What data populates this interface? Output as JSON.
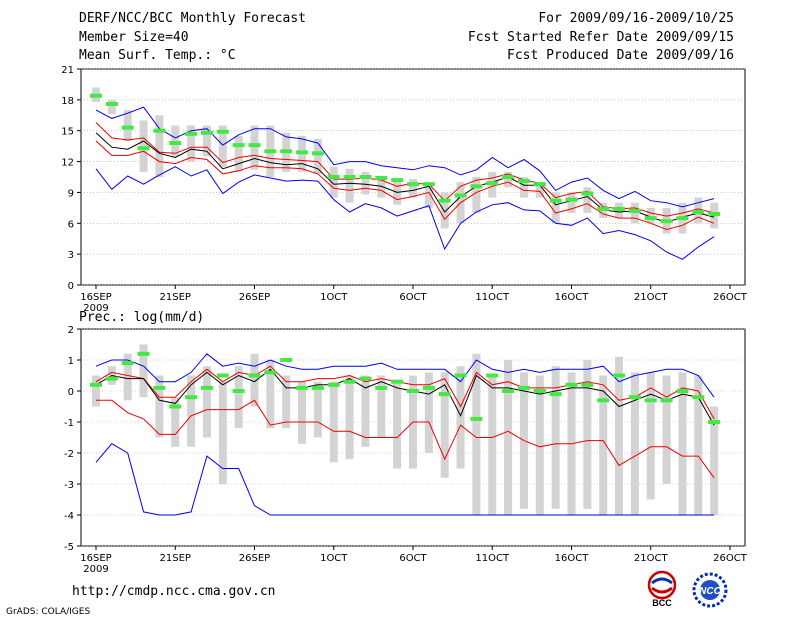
{
  "header": {
    "title": "DERF/NCC/BCC Monthly Forecast",
    "member_size": "Member Size=40",
    "variable": "Mean Surf. Temp.: °C",
    "period": "For 2009/09/16-2009/10/25",
    "started": "Fcst Started Refer Date 2009/09/15",
    "produced": "Fcst Produced Date 2009/09/16"
  },
  "footer": {
    "url": "http://cmdp.ncc.cma.gov.cn",
    "grads": "GrADS: COLA/IGES",
    "logo1_text": "BCC",
    "logo2_text": "NCC"
  },
  "colors": {
    "blue": "#0000ee",
    "red": "#ee0000",
    "black": "#000000",
    "box": "#d3d3d3",
    "green": "#44e844",
    "grid": "#aaaaaa"
  },
  "chart_data": [
    {
      "type": "line",
      "title": "Mean Surf. Temp.: °C",
      "ylim": [
        0,
        21
      ],
      "yticks": [
        "0",
        "3",
        "6",
        "9",
        "12",
        "15",
        "18",
        "21"
      ],
      "xlim": [
        1,
        41
      ],
      "xtick_positions": [
        1,
        6,
        11,
        16,
        21,
        26,
        31,
        36,
        41
      ],
      "xtick_labels": [
        "16SEP",
        "21SEP",
        "26SEP",
        "1OCT",
        "6OCT",
        "11OCT",
        "16OCT",
        "21OCT",
        "26OCT"
      ],
      "xtick_sublabel": "2009",
      "x": [
        1,
        2,
        3,
        4,
        5,
        6,
        7,
        8,
        9,
        10,
        11,
        12,
        13,
        14,
        15,
        16,
        17,
        18,
        19,
        20,
        21,
        22,
        23,
        24,
        25,
        26,
        27,
        28,
        29,
        30,
        31,
        32,
        33,
        34,
        35,
        36,
        37,
        38,
        39,
        40
      ],
      "series": [
        {
          "name": "max",
          "color": "blue",
          "values": [
            17.0,
            16.2,
            16.7,
            17.3,
            15.2,
            14.3,
            15.0,
            15.2,
            13.6,
            14.6,
            15.2,
            15.2,
            14.4,
            14.2,
            13.8,
            11.7,
            12.0,
            12.0,
            11.6,
            11.4,
            11.2,
            11.6,
            11.4,
            10.7,
            11.2,
            12.4,
            11.4,
            12.2,
            11.1,
            9.2,
            10.0,
            10.4,
            9.2,
            8.4,
            9.1,
            8.2,
            8.0,
            7.6,
            8.0,
            8.4
          ]
        },
        {
          "name": "upper",
          "color": "red",
          "values": [
            15.8,
            14.3,
            14.1,
            14.3,
            12.9,
            12.8,
            13.4,
            13.4,
            11.9,
            12.4,
            12.6,
            12.3,
            12.2,
            12.1,
            12.0,
            10.3,
            10.3,
            10.4,
            10.2,
            9.6,
            9.9,
            9.8,
            8.2,
            9.6,
            10.2,
            10.4,
            10.8,
            10.2,
            9.9,
            8.5,
            8.9,
            9.1,
            7.6,
            7.4,
            7.5,
            7.0,
            6.7,
            7.0,
            7.4,
            7.0
          ]
        },
        {
          "name": "mean",
          "color": "black",
          "values": [
            14.8,
            13.4,
            13.2,
            14.0,
            12.8,
            12.4,
            13.2,
            13.0,
            11.3,
            11.8,
            12.3,
            11.9,
            11.7,
            11.8,
            11.3,
            9.8,
            9.9,
            9.8,
            9.6,
            9.0,
            9.2,
            9.6,
            7.1,
            8.6,
            9.6,
            10.0,
            10.5,
            9.7,
            9.7,
            7.8,
            8.2,
            8.6,
            7.3,
            7.1,
            7.2,
            6.6,
            6.1,
            6.6,
            7.0,
            6.6
          ]
        },
        {
          "name": "lower",
          "color": "red",
          "values": [
            14.0,
            12.6,
            12.6,
            13.0,
            12.0,
            11.8,
            12.4,
            12.2,
            10.8,
            11.1,
            11.6,
            11.4,
            11.4,
            11.3,
            10.8,
            9.4,
            9.2,
            9.4,
            9.2,
            8.3,
            8.6,
            9.0,
            6.4,
            8.0,
            9.0,
            9.6,
            10.0,
            9.2,
            9.1,
            7.0,
            7.4,
            7.9,
            6.9,
            6.5,
            6.5,
            6.0,
            5.4,
            5.8,
            6.6,
            6.0
          ]
        },
        {
          "name": "min",
          "color": "blue",
          "values": [
            11.3,
            9.3,
            10.6,
            9.8,
            10.7,
            11.5,
            10.6,
            11.2,
            8.9,
            10.0,
            10.7,
            10.4,
            10.1,
            10.2,
            10.1,
            8.3,
            7.1,
            7.9,
            7.5,
            6.7,
            7.2,
            7.7,
            3.5,
            6.0,
            7.1,
            7.8,
            8.0,
            7.3,
            7.2,
            6.0,
            5.8,
            6.5,
            5.0,
            5.3,
            4.9,
            4.3,
            3.2,
            2.5,
            3.7,
            4.7
          ]
        }
      ],
      "boxes": [
        [
          17.8,
          19.2
        ],
        [
          16.6,
          18.0
        ],
        [
          14.0,
          17.0
        ],
        [
          11.0,
          16.0
        ],
        [
          10.5,
          16.5
        ],
        [
          12.5,
          15.5
        ],
        [
          12.0,
          15.5
        ],
        [
          12.5,
          15.5
        ],
        [
          11.5,
          15.5
        ],
        [
          11.0,
          14.5
        ],
        [
          11.2,
          15.5
        ],
        [
          10.5,
          15.5
        ],
        [
          11.0,
          14.8
        ],
        [
          11.0,
          14.5
        ],
        [
          10.8,
          14.2
        ],
        [
          8.5,
          11.5
        ],
        [
          8.0,
          11.3
        ],
        [
          8.8,
          11.0
        ],
        [
          8.5,
          10.5
        ],
        [
          7.8,
          10.0
        ],
        [
          8.5,
          10.3
        ],
        [
          7.5,
          10.0
        ],
        [
          5.5,
          9.0
        ],
        [
          6.0,
          10.0
        ],
        [
          7.0,
          10.5
        ],
        [
          8.5,
          11.0
        ],
        [
          9.5,
          11.0
        ],
        [
          8.5,
          10.5
        ],
        [
          8.5,
          10.0
        ],
        [
          6.0,
          9.0
        ],
        [
          7.0,
          9.0
        ],
        [
          7.0,
          9.5
        ],
        [
          6.5,
          8.0
        ],
        [
          6.5,
          8.0
        ],
        [
          6.0,
          8.0
        ],
        [
          6.0,
          7.5
        ],
        [
          5.0,
          7.5
        ],
        [
          5.0,
          8.0
        ],
        [
          6.0,
          8.5
        ],
        [
          5.5,
          8.0
        ]
      ],
      "observed": [
        18.4,
        17.6,
        15.3,
        13.3,
        15.0,
        13.8,
        14.7,
        14.8,
        14.9,
        13.6,
        13.6,
        13.0,
        13.0,
        12.9,
        12.8,
        10.5,
        10.5,
        10.5,
        10.4,
        10.2,
        9.8,
        9.8,
        8.2,
        8.7,
        9.6,
        9.9,
        10.5,
        10.1,
        9.8,
        8.2,
        8.3,
        8.9,
        7.4,
        7.4,
        7.2,
        6.5,
        6.2,
        6.5,
        7.1,
        6.9
      ]
    },
    {
      "type": "line",
      "title": "Prec.: log(mm/d)",
      "ylim": [
        -5,
        2
      ],
      "yticks": [
        "-5",
        "-4",
        "-3",
        "-2",
        "-1",
        "0",
        "1",
        "2"
      ],
      "xlim": [
        1,
        41
      ],
      "xtick_positions": [
        1,
        6,
        11,
        16,
        21,
        26,
        31,
        36,
        41
      ],
      "xtick_labels": [
        "16SEP",
        "21SEP",
        "26SEP",
        "1OCT",
        "6OCT",
        "11OCT",
        "16OCT",
        "21OCT",
        "26OCT"
      ],
      "xtick_sublabel": "2009",
      "x": [
        1,
        2,
        3,
        4,
        5,
        6,
        7,
        8,
        9,
        10,
        11,
        12,
        13,
        14,
        15,
        16,
        17,
        18,
        19,
        20,
        21,
        22,
        23,
        24,
        25,
        26,
        27,
        28,
        29,
        30,
        31,
        32,
        33,
        34,
        35,
        36,
        37,
        38,
        39,
        40
      ],
      "series": [
        {
          "name": "max",
          "color": "blue",
          "values": [
            0.8,
            1.0,
            1.0,
            0.8,
            0.3,
            0.3,
            0.6,
            1.2,
            0.8,
            0.9,
            0.8,
            1.0,
            0.8,
            0.7,
            0.7,
            0.8,
            0.8,
            0.8,
            0.9,
            0.7,
            0.7,
            0.7,
            0.7,
            0.3,
            1.0,
            0.7,
            0.6,
            0.7,
            0.6,
            0.7,
            0.7,
            0.7,
            0.8,
            0.3,
            0.5,
            0.6,
            0.7,
            0.7,
            0.5,
            -0.2
          ]
        },
        {
          "name": "upper",
          "color": "red",
          "values": [
            0.3,
            0.6,
            0.5,
            0.4,
            -0.2,
            -0.2,
            0.3,
            0.7,
            0.3,
            0.6,
            0.5,
            0.8,
            0.3,
            0.3,
            0.4,
            0.4,
            0.5,
            0.3,
            0.4,
            0.3,
            0.2,
            0.2,
            0.4,
            -0.5,
            0.6,
            0.2,
            0.3,
            0.1,
            0.1,
            0.1,
            0.2,
            0.3,
            0.2,
            -0.3,
            -0.2,
            0.1,
            -0.2,
            0.1,
            0.0,
            -0.9
          ]
        },
        {
          "name": "mean",
          "color": "black",
          "values": [
            0.2,
            0.5,
            0.4,
            0.4,
            -0.3,
            -0.4,
            0.2,
            0.6,
            0.2,
            0.5,
            0.3,
            0.7,
            0.1,
            0.1,
            0.2,
            0.2,
            0.4,
            0.1,
            0.3,
            0.1,
            0.0,
            -0.1,
            0.2,
            -0.8,
            0.5,
            0.1,
            0.1,
            0.0,
            -0.1,
            0.0,
            0.1,
            0.1,
            0.0,
            -0.5,
            -0.3,
            -0.1,
            -0.3,
            -0.1,
            -0.2,
            -1.1
          ]
        },
        {
          "name": "lower",
          "color": "red",
          "values": [
            -0.3,
            -0.3,
            -0.7,
            -0.9,
            -1.4,
            -1.4,
            -0.8,
            -0.6,
            -0.6,
            -0.6,
            -0.3,
            -1.1,
            -1.0,
            -1.0,
            -1.0,
            -1.3,
            -1.3,
            -1.5,
            -1.5,
            -1.5,
            -1.0,
            -1.0,
            -2.2,
            -1.1,
            -1.5,
            -1.5,
            -1.3,
            -1.6,
            -1.8,
            -1.7,
            -1.7,
            -1.6,
            -1.6,
            -2.4,
            -2.1,
            -1.8,
            -1.8,
            -2.1,
            -2.1,
            -2.8
          ]
        },
        {
          "name": "min",
          "color": "blue",
          "values": [
            -2.3,
            -1.7,
            -2.0,
            -3.9,
            -4.0,
            -4.0,
            -3.9,
            -2.1,
            -2.5,
            -2.5,
            -3.7,
            -4.0,
            -4.0,
            -4.0,
            -4.0,
            -4.0,
            -4.0,
            -4.0,
            -4.0,
            -4.0,
            -4.0,
            -4.0,
            -4.0,
            -4.0,
            -4.0,
            -4.0,
            -4.0,
            -4.0,
            -4.0,
            -4.0,
            -4.0,
            -4.0,
            -4.0,
            -4.0,
            -4.0,
            -4.0,
            -4.0,
            -4.0,
            -4.0,
            -4.0
          ]
        }
      ],
      "boxes": [
        [
          -0.5,
          0.5
        ],
        [
          0.2,
          0.8
        ],
        [
          -0.3,
          1.2
        ],
        [
          -0.2,
          1.5
        ],
        [
          -1.5,
          0.5
        ],
        [
          -1.8,
          -0.2
        ],
        [
          -1.8,
          0.5
        ],
        [
          -1.5,
          0.8
        ],
        [
          -3.0,
          0.3
        ],
        [
          -1.2,
          0.8
        ],
        [
          -0.5,
          1.2
        ],
        [
          -1.2,
          1.0
        ],
        [
          -1.2,
          0.5
        ],
        [
          -1.7,
          0.3
        ],
        [
          -1.5,
          0.3
        ],
        [
          -2.3,
          0.3
        ],
        [
          -2.2,
          0.5
        ],
        [
          -1.8,
          0.5
        ],
        [
          -1.5,
          0.5
        ],
        [
          -2.5,
          0.3
        ],
        [
          -2.5,
          0.5
        ],
        [
          -2.0,
          0.6
        ],
        [
          -2.8,
          0.6
        ],
        [
          -2.5,
          0.8
        ],
        [
          -4.0,
          1.2
        ],
        [
          -4.0,
          0.5
        ],
        [
          -4.0,
          1.0
        ],
        [
          -3.8,
          0.6
        ],
        [
          -4.0,
          0.5
        ],
        [
          -3.8,
          0.8
        ],
        [
          -4.0,
          0.6
        ],
        [
          -3.8,
          1.0
        ],
        [
          -4.0,
          0.5
        ],
        [
          -4.0,
          1.1
        ],
        [
          -4.0,
          0.6
        ],
        [
          -3.5,
          0.6
        ],
        [
          -3.0,
          0.5
        ],
        [
          -4.0,
          0.6
        ],
        [
          -4.0,
          0.5
        ],
        [
          -4.0,
          -0.5
        ]
      ],
      "observed": [
        0.2,
        0.4,
        0.9,
        1.2,
        0.1,
        -0.5,
        -0.2,
        0.1,
        0.5,
        0.0,
        0.5,
        0.6,
        1.0,
        0.1,
        0.1,
        0.2,
        0.3,
        0.4,
        0.1,
        0.3,
        0.0,
        0.1,
        -0.1,
        0.5,
        -0.9,
        0.5,
        0.0,
        0.1,
        0.0,
        -0.1,
        0.2,
        0.2,
        -0.3,
        0.5,
        -0.2,
        -0.3,
        -0.3,
        0.0,
        -0.2,
        -1.0
      ]
    }
  ]
}
